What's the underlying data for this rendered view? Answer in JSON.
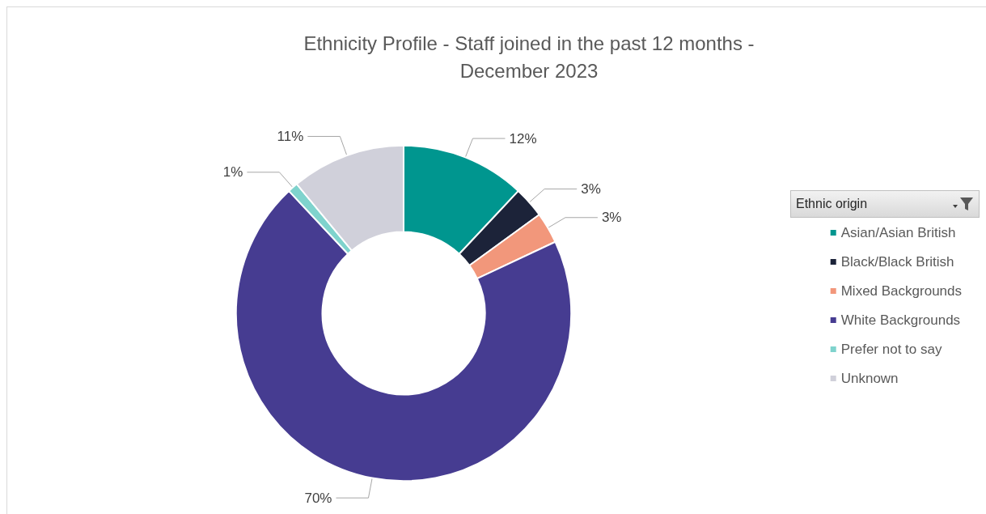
{
  "chart_data": {
    "type": "donut",
    "title": "Ethnicity Profile - Staff joined in the past 12 months -\nDecember 2023",
    "legend_title": "Ethnic origin",
    "categories": [
      "Asian/Asian British",
      "Black/Black British",
      "Mixed Backgrounds",
      "White Backgrounds",
      "Prefer not to say",
      "Unknown"
    ],
    "values": [
      12,
      3,
      3,
      70,
      1,
      11
    ],
    "colors": [
      "#00968f",
      "#1c2339",
      "#f2977b",
      "#463c91",
      "#7fd3cd",
      "#d0d0da"
    ],
    "value_labels": [
      "12%",
      "3%",
      "3%",
      "70%",
      "1%",
      "11%"
    ],
    "legend": "right"
  }
}
